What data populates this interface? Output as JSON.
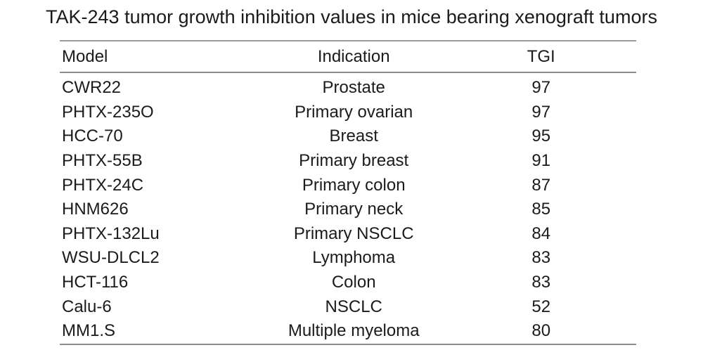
{
  "title": "TAK-243 tumor growth inhibition values in mice bearing xenograft tumors",
  "colors": {
    "background": "#ffffff",
    "text": "#1b1b1b",
    "rule": "#8c8c8c"
  },
  "table": {
    "headers": {
      "model": "Model",
      "indication": "Indication",
      "tgi": "TGI"
    },
    "rows": [
      {
        "model": "CWR22",
        "indication": "Prostate",
        "tgi": "97"
      },
      {
        "model": "PHTX-235O",
        "indication": "Primary ovarian",
        "tgi": "97"
      },
      {
        "model": "HCC-70",
        "indication": "Breast",
        "tgi": "95"
      },
      {
        "model": "PHTX-55B",
        "indication": "Primary breast",
        "tgi": "91"
      },
      {
        "model": "PHTX-24C",
        "indication": "Primary colon",
        "tgi": "87"
      },
      {
        "model": "HNM626",
        "indication": "Primary neck",
        "tgi": "85"
      },
      {
        "model": "PHTX-132Lu",
        "indication": "Primary NSCLC",
        "tgi": "84"
      },
      {
        "model": "WSU-DLCL2",
        "indication": "Lymphoma",
        "tgi": "83"
      },
      {
        "model": "HCT-116",
        "indication": "Colon",
        "tgi": "83"
      },
      {
        "model": "Calu-6",
        "indication": "NSCLC",
        "tgi": "52"
      },
      {
        "model": "MM1.S",
        "indication": "Multiple myeloma",
        "tgi": "80"
      }
    ]
  },
  "chart_data": {
    "type": "table",
    "title": "TAK-243 tumor growth inhibition values in mice bearing xenograft tumors",
    "columns": [
      "Model",
      "Indication",
      "TGI"
    ],
    "rows": [
      [
        "CWR22",
        "Prostate",
        97
      ],
      [
        "PHTX-235O",
        "Primary ovarian",
        97
      ],
      [
        "HCC-70",
        "Breast",
        95
      ],
      [
        "PHTX-55B",
        "Primary breast",
        91
      ],
      [
        "PHTX-24C",
        "Primary colon",
        87
      ],
      [
        "HNM626",
        "Primary neck",
        85
      ],
      [
        "PHTX-132Lu",
        "Primary NSCLC",
        84
      ],
      [
        "WSU-DLCL2",
        "Lymphoma",
        83
      ],
      [
        "HCT-116",
        "Colon",
        83
      ],
      [
        "Calu-6",
        "NSCLC",
        52
      ],
      [
        "MM1.S",
        "Multiple myeloma",
        80
      ]
    ]
  }
}
